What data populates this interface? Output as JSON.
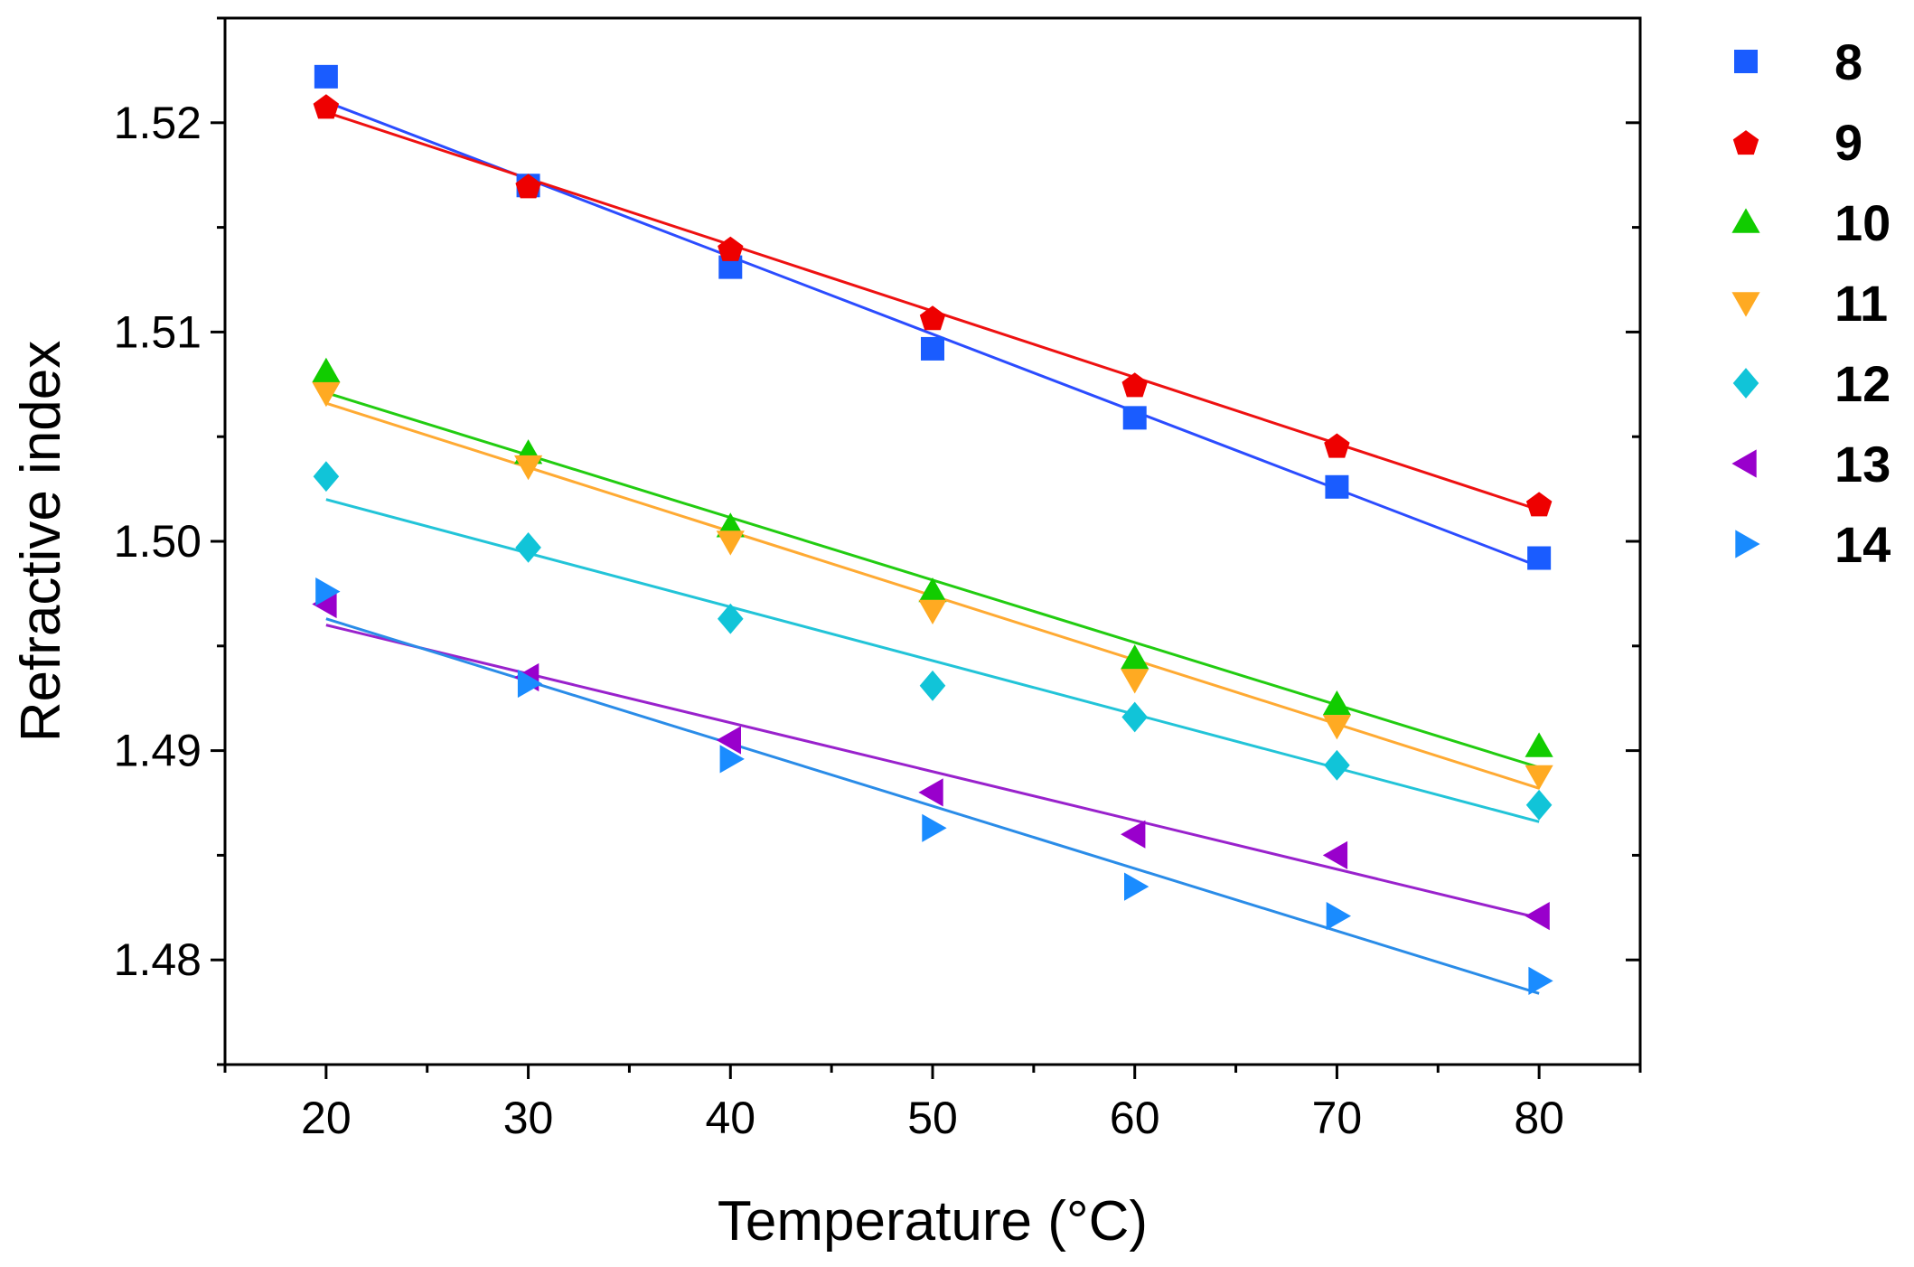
{
  "chart_data": {
    "type": "scatter",
    "xlabel": "Temperature (°C)",
    "ylabel": "Refractive index",
    "xlim": [
      15,
      85
    ],
    "ylim": [
      1.475,
      1.525
    ],
    "xticks": [
      20,
      30,
      40,
      50,
      60,
      70,
      80
    ],
    "yticks": [
      1.48,
      1.49,
      1.5,
      1.51,
      1.52
    ],
    "ytick_labels": [
      "1.48",
      "1.49",
      "1.50",
      "1.51",
      "1.52"
    ],
    "grid": false,
    "legend_position": "right",
    "x": [
      20,
      30,
      40,
      50,
      60,
      70,
      80
    ],
    "series": [
      {
        "name": "8",
        "marker": "square",
        "color": "#1a5cff",
        "line_color": "#2b4cff",
        "values": [
          1.5222,
          1.517,
          1.5131,
          1.5092,
          1.5059,
          1.5026,
          1.4992
        ],
        "fit": [
          1.521,
          1.4988
        ]
      },
      {
        "name": "9",
        "marker": "pentagon",
        "color": "#ee0000",
        "line_color": "#ee1111",
        "values": [
          1.5208,
          1.517,
          1.514,
          1.5107,
          1.5075,
          1.5046,
          1.5018
        ],
        "fit": [
          1.5205,
          1.5015
        ]
      },
      {
        "name": "10",
        "marker": "triangle-up",
        "color": "#11cc00",
        "line_color": "#22cc11",
        "values": [
          1.5081,
          1.5042,
          1.5007,
          1.4976,
          1.4944,
          1.4922,
          1.4902
        ],
        "fit": [
          1.5071,
          1.4892
        ]
      },
      {
        "name": "11",
        "marker": "triangle-down",
        "color": "#ffaa22",
        "line_color": "#ffaa33",
        "values": [
          1.5071,
          1.5036,
          1.5,
          1.4967,
          1.4934,
          1.4912,
          1.4888
        ],
        "fit": [
          1.5066,
          1.4882
        ]
      },
      {
        "name": "12",
        "marker": "diamond",
        "color": "#11c4d8",
        "line_color": "#22c4d8",
        "values": [
          1.5031,
          1.4997,
          1.4963,
          1.4931,
          1.4916,
          1.4893,
          1.4874
        ],
        "fit": [
          1.502,
          1.4866
        ]
      },
      {
        "name": "13",
        "marker": "triangle-left",
        "color": "#9900cc",
        "line_color": "#9922cc",
        "values": [
          1.497,
          1.4935,
          1.4905,
          1.488,
          1.486,
          1.485,
          1.4821
        ],
        "fit": [
          1.496,
          1.482
        ]
      },
      {
        "name": "14",
        "marker": "triangle-right",
        "color": "#1a8cff",
        "line_color": "#2a8ce8",
        "values": [
          1.4976,
          1.4932,
          1.4896,
          1.4863,
          1.4835,
          1.4821,
          1.479
        ],
        "fit": [
          1.4963,
          1.4784
        ]
      }
    ]
  }
}
